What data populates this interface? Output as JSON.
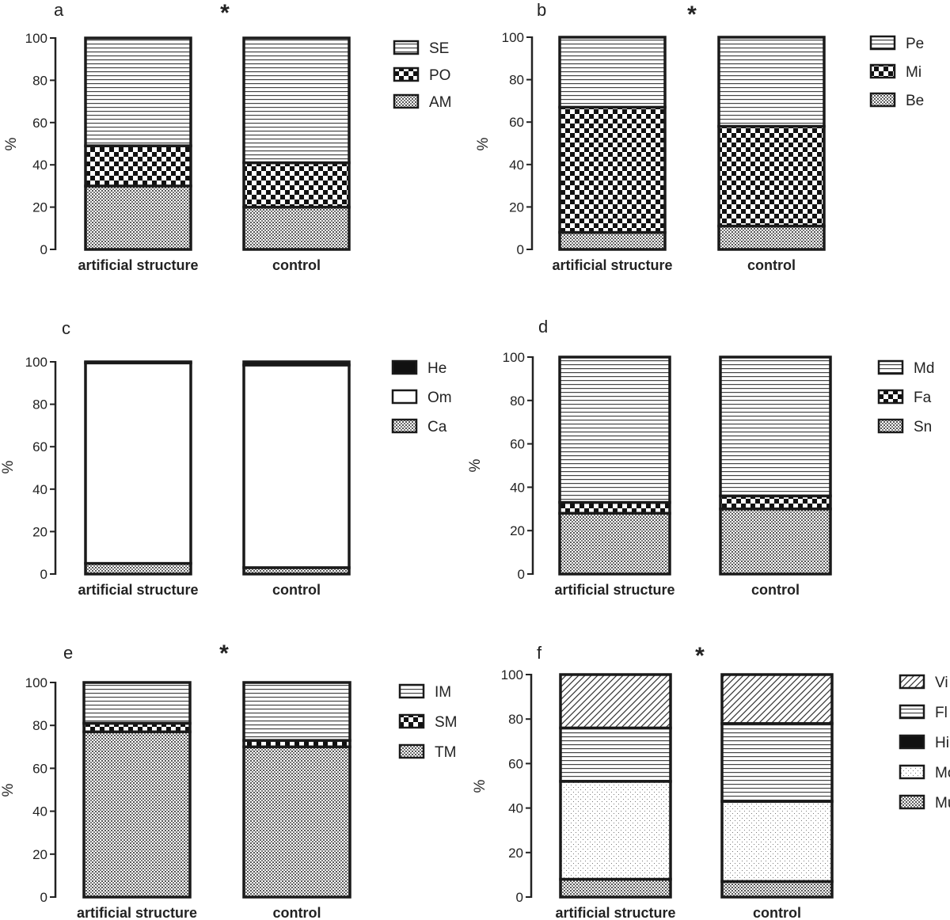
{
  "chart_data": [
    {
      "type": "bar",
      "stacked": true,
      "panel": "a",
      "significance": "*",
      "categories": [
        "artificial structure",
        "control"
      ],
      "ylabel": "%",
      "ylim": [
        0,
        100
      ],
      "yticks": [
        0,
        20,
        40,
        60,
        80,
        100
      ],
      "legend": "right",
      "series": [
        {
          "name": "AM",
          "values": [
            30,
            20
          ],
          "pattern": "dots"
        },
        {
          "name": "PO",
          "values": [
            19,
            21
          ],
          "pattern": "checker"
        },
        {
          "name": "SE",
          "values": [
            51,
            59
          ],
          "pattern": "hlines"
        }
      ]
    },
    {
      "type": "bar",
      "stacked": true,
      "panel": "b",
      "significance": "*",
      "categories": [
        "artificial structure",
        "control"
      ],
      "ylabel": "%",
      "ylim": [
        0,
        100
      ],
      "yticks": [
        0,
        20,
        40,
        60,
        80,
        100
      ],
      "legend": "right",
      "series": [
        {
          "name": "Be",
          "values": [
            8,
            11
          ],
          "pattern": "dots"
        },
        {
          "name": "Mi",
          "values": [
            59,
            47
          ],
          "pattern": "checker"
        },
        {
          "name": "Pe",
          "values": [
            33,
            42
          ],
          "pattern": "hlines"
        }
      ]
    },
    {
      "type": "bar",
      "stacked": true,
      "panel": "c",
      "significance": "",
      "categories": [
        "artificial structure",
        "control"
      ],
      "ylabel": "%",
      "ylim": [
        0,
        100
      ],
      "yticks": [
        0,
        20,
        40,
        60,
        80,
        100
      ],
      "legend": "right",
      "series": [
        {
          "name": "Ca",
          "values": [
            5,
            3
          ],
          "pattern": "dots"
        },
        {
          "name": "Om",
          "values": [
            94.5,
            95.5
          ],
          "pattern": "white"
        },
        {
          "name": "He",
          "values": [
            0.5,
            1.5
          ],
          "pattern": "black"
        }
      ]
    },
    {
      "type": "bar",
      "stacked": true,
      "panel": "d",
      "significance": "",
      "categories": [
        "artificial structure",
        "control"
      ],
      "ylabel": "%",
      "ylim": [
        0,
        100
      ],
      "yticks": [
        0,
        20,
        40,
        60,
        80,
        100
      ],
      "legend": "right",
      "series": [
        {
          "name": "Sn",
          "values": [
            28,
            30
          ],
          "pattern": "dots"
        },
        {
          "name": "Fa",
          "values": [
            5,
            6
          ],
          "pattern": "checker"
        },
        {
          "name": "Md",
          "values": [
            67,
            64
          ],
          "pattern": "hlines"
        }
      ]
    },
    {
      "type": "bar",
      "stacked": true,
      "panel": "e",
      "significance": "*",
      "categories": [
        "artificial structure",
        "control"
      ],
      "ylabel": "%",
      "ylim": [
        0,
        100
      ],
      "yticks": [
        0,
        20,
        40,
        60,
        80,
        100
      ],
      "legend": "right",
      "series": [
        {
          "name": "TM",
          "values": [
            77,
            70
          ],
          "pattern": "dots"
        },
        {
          "name": "SM",
          "values": [
            4,
            3
          ],
          "pattern": "checker"
        },
        {
          "name": "IM",
          "values": [
            19,
            27
          ],
          "pattern": "hlines"
        }
      ]
    },
    {
      "type": "bar",
      "stacked": true,
      "panel": "f",
      "significance": "*",
      "categories": [
        "artificial structure",
        "control"
      ],
      "ylabel": "%",
      "ylim": [
        0,
        100
      ],
      "yticks": [
        0,
        20,
        40,
        60,
        80,
        100
      ],
      "legend": "right",
      "series": [
        {
          "name": "Mu",
          "values": [
            8,
            7
          ],
          "pattern": "dots"
        },
        {
          "name": "Mo",
          "values": [
            44,
            36
          ],
          "pattern": "sparsedots"
        },
        {
          "name": "Hi",
          "values": [
            0,
            0
          ],
          "pattern": "black"
        },
        {
          "name": "Fl",
          "values": [
            24,
            35
          ],
          "pattern": "hlines"
        },
        {
          "name": "Vi",
          "values": [
            24,
            22
          ],
          "pattern": "diag"
        }
      ]
    }
  ]
}
